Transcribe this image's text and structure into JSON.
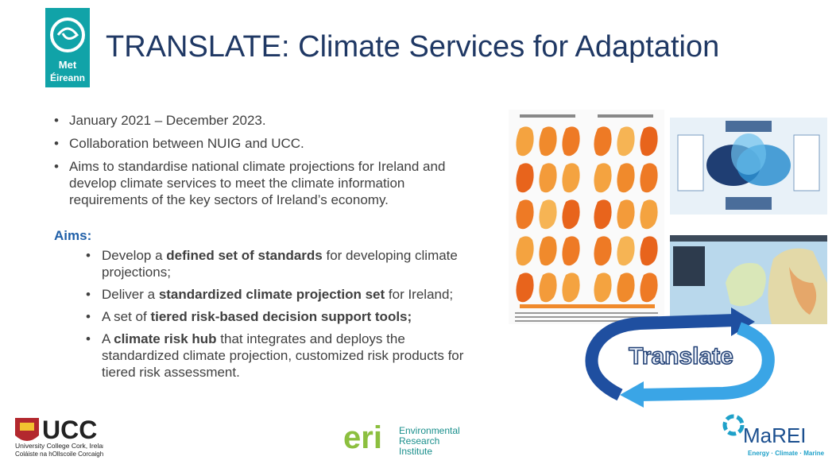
{
  "header": {
    "title": "TRANSLATE: Climate Services for Adaptation",
    "logo": [
      "Met",
      "Éireann"
    ]
  },
  "bullets": [
    "January 2021 – December 2023.",
    "Collaboration between NUIG and UCC.",
    "Aims to standardise national climate projections for Ireland and develop climate services to meet the climate information requirements of the key sectors of Ireland’s economy."
  ],
  "aims": {
    "label": "Aims:",
    "items": [
      [
        {
          "text": "Develop a "
        },
        {
          "text": "defined set of standards",
          "bold": true
        },
        {
          "text": " for developing climate projections;"
        }
      ],
      [
        {
          "text": "Deliver a "
        },
        {
          "text": "standardized climate projection set",
          "bold": true
        },
        {
          "text": " for Ireland;"
        }
      ],
      [
        {
          "text": "A set of "
        },
        {
          "text": "tiered risk-based decision support tools;",
          "bold": true
        }
      ],
      [
        {
          "text": "A "
        },
        {
          "text": "climate risk hub",
          "bold": true
        },
        {
          "text": " that integrates and deploys the standardized climate projection, customized risk products for tiered risk assessment."
        }
      ]
    ]
  },
  "graphic": {
    "label": "Translate"
  },
  "footer": {
    "ucc": {
      "name": "UCC",
      "line1": "University College Cork, Ireland",
      "line2": "Coláiste na hOllscoile Corcaigh"
    },
    "eri": {
      "mark": "eri",
      "lines": [
        "Environmental",
        "Research",
        "Institute"
      ]
    },
    "marei": {
      "name": "MaREI",
      "tagline": "Energy · Climate · Marine"
    }
  }
}
